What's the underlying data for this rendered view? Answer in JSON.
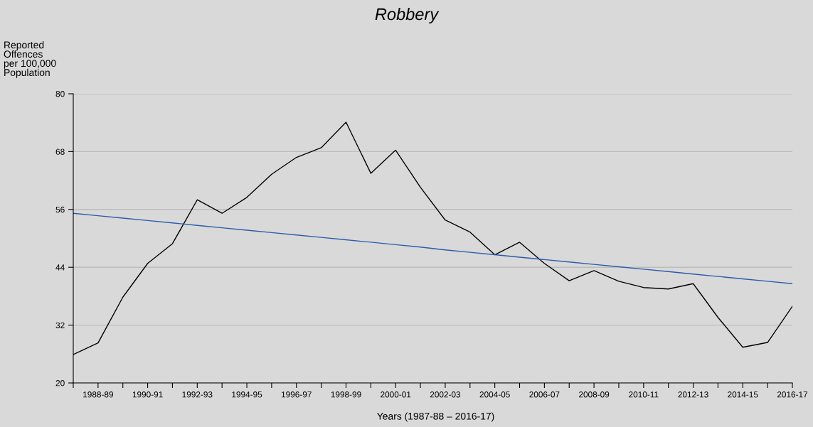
{
  "chart_data": {
    "type": "line",
    "title": "Robbery",
    "ylabel": "Reported\nOffences\nper 100,000\nPopulation",
    "xlabel": "Years (1987-88 – 2016-17)",
    "categories": [
      null,
      "1988-89",
      null,
      "1990-91",
      null,
      "1992-93",
      null,
      "1994-95",
      null,
      "1996-97",
      null,
      "1998-99",
      null,
      "2000-01",
      null,
      "2002-03",
      null,
      "2004-05",
      null,
      "2006-07",
      null,
      "2008-09",
      null,
      "2010-11",
      null,
      "2012-13",
      null,
      "2014-15",
      null,
      "2016-17"
    ],
    "series": [
      {
        "color": "#000000",
        "values": [
          25.9,
          28.3,
          37.8,
          44.8,
          48.9,
          58.0,
          55.2,
          58.5,
          63.3,
          66.8,
          68.8,
          74.1,
          63.5,
          68.3,
          60.6,
          53.8,
          51.3,
          46.6,
          49.2,
          44.8,
          41.2,
          43.3,
          41.1,
          39.8,
          39.5,
          40.6,
          33.6,
          27.4,
          28.4,
          35.9
        ]
      },
      {
        "color": "#2a5caa",
        "values": [
          55.2,
          54.7,
          54.2,
          53.7,
          53.2,
          52.7,
          52.2,
          51.7,
          51.2,
          50.7,
          50.2,
          49.7,
          49.2,
          48.7,
          48.2,
          47.6,
          47.1,
          46.6,
          46.1,
          45.6,
          45.1,
          44.6,
          44.1,
          43.6,
          43.1,
          42.6,
          42.1,
          41.6,
          41.1,
          40.6
        ]
      }
    ],
    "ylim": [
      20,
      80
    ],
    "yticks": [
      20,
      32,
      44,
      56,
      68,
      80
    ],
    "grid": "y",
    "marker": "none",
    "line_style": "solid"
  }
}
